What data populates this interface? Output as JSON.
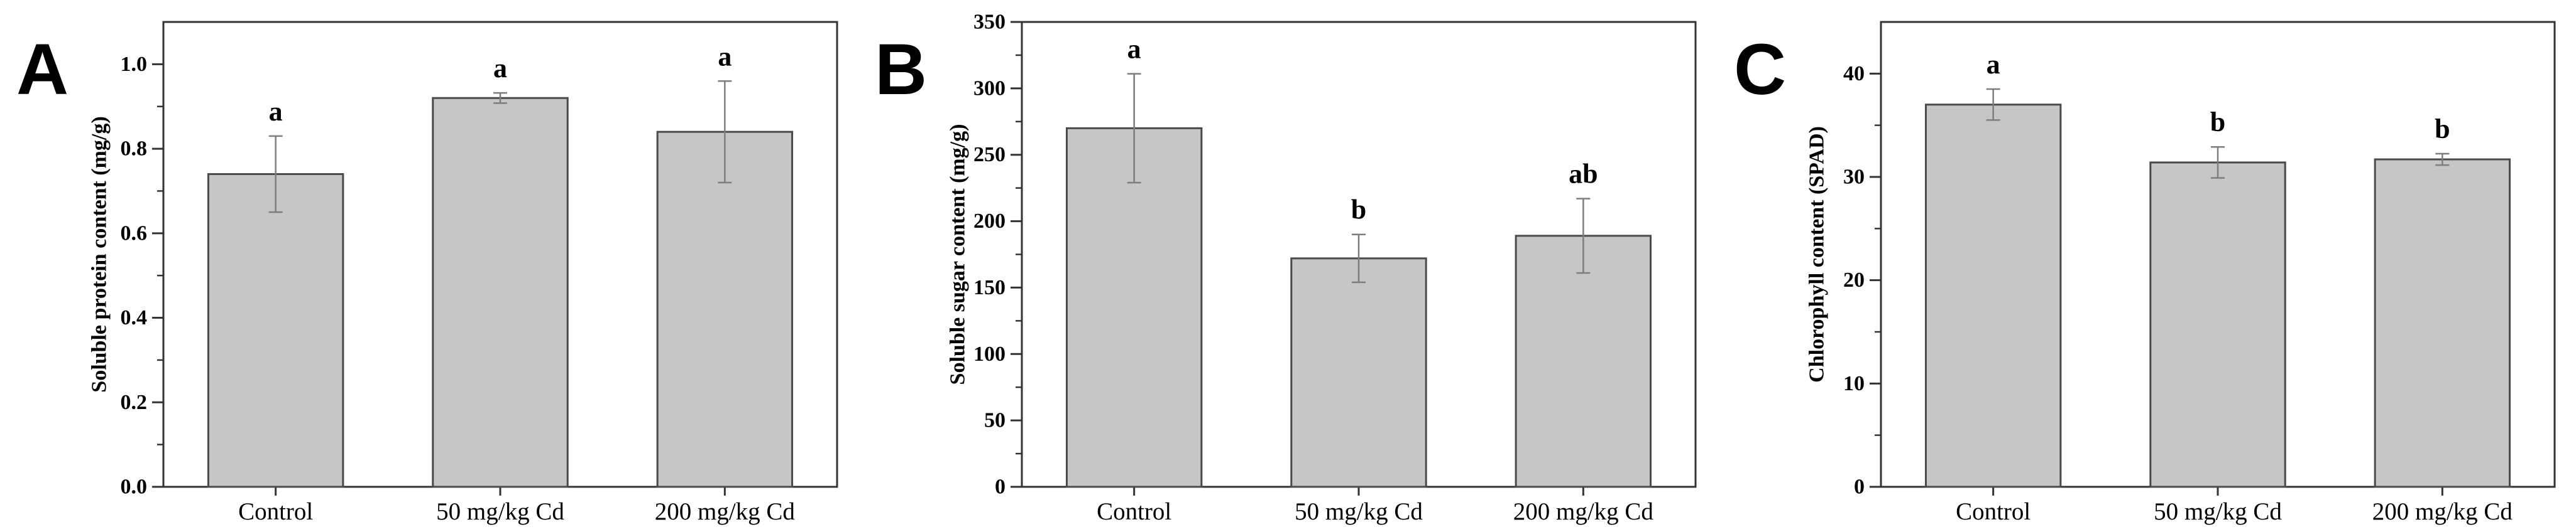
{
  "figure": {
    "background": "#ffffff",
    "bar_fill": "#c6c6c6",
    "bar_edge": "#4a4a4a",
    "error_color": "#7d7d7d",
    "axis_color": "#333333",
    "text_color": "#000000"
  },
  "chart_data": [
    {
      "type": "bar",
      "panel_label": "A",
      "ylabel": "Soluble protein content (mg/g)",
      "xlabel": "",
      "categories": [
        "Control",
        "50 mg/kg Cd",
        "200 mg/kg Cd"
      ],
      "values": [
        0.74,
        0.92,
        0.84
      ],
      "errors": [
        0.09,
        0.012,
        0.12
      ],
      "sig_labels": [
        "a",
        "a",
        "a"
      ],
      "ylim": [
        0,
        1.1
      ],
      "ytick_max": 1.0,
      "ytick_step": 0.2,
      "yminor_step": 0.1,
      "ytick_decimals": 1,
      "grid": false,
      "legend": "none"
    },
    {
      "type": "bar",
      "panel_label": "B",
      "ylabel": "Soluble sugar content (mg/g)",
      "xlabel": "",
      "categories": [
        "Control",
        "50 mg/kg Cd",
        "200 mg/kg Cd"
      ],
      "values": [
        270,
        172,
        189
      ],
      "errors": [
        41,
        18,
        28
      ],
      "sig_labels": [
        "a",
        "b",
        "ab"
      ],
      "ylim": [
        0,
        350
      ],
      "ytick_max": 350,
      "ytick_step": 50,
      "yminor_step": 25,
      "ytick_decimals": 0,
      "grid": false,
      "legend": "none"
    },
    {
      "type": "bar",
      "panel_label": "C",
      "ylabel": "Chlorophyll content (SPAD)",
      "xlabel": "",
      "categories": [
        "Control",
        "50 mg/kg Cd",
        "200 mg/kg Cd"
      ],
      "values": [
        37.0,
        31.4,
        31.7
      ],
      "errors": [
        1.5,
        1.5,
        0.55
      ],
      "sig_labels": [
        "a",
        "b",
        "b"
      ],
      "ylim": [
        0,
        45
      ],
      "ytick_max": 40,
      "ytick_step": 10,
      "yminor_step": 5,
      "ytick_decimals": 0,
      "grid": false,
      "legend": "none"
    }
  ]
}
